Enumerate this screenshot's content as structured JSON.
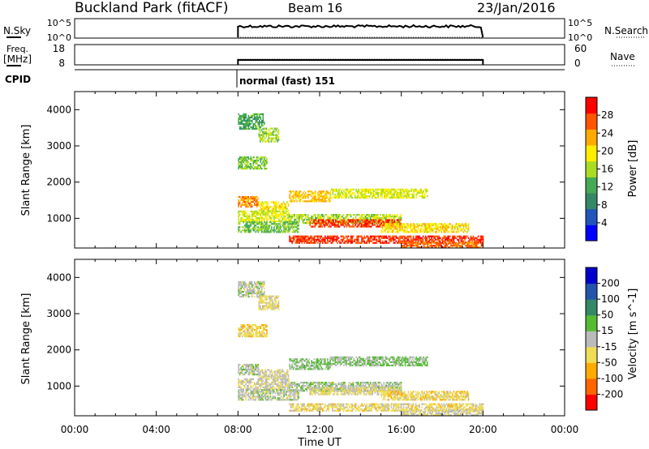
{
  "header": {
    "site": "Buckland Park (fitACF)",
    "beam": "Beam 16",
    "date": "23/Jan/2016"
  },
  "top_panels": {
    "noise": {
      "left_label": "N.Sky",
      "right_label": "N.Search",
      "left_ticks": [
        "10^5",
        "10^0"
      ],
      "right_ticks": [
        "10^5",
        "10^0"
      ]
    },
    "freq": {
      "left_label_1": "Freq.",
      "left_label_2": "[MHz]",
      "left_ticks": [
        "18",
        "8"
      ],
      "right_ticks": [
        "60",
        "0"
      ],
      "right_label": "Nave"
    },
    "cpid": {
      "label": "CPID",
      "mode_text": "normal (fast) 151"
    }
  },
  "x_axis": {
    "label": "Time UT",
    "ticks": [
      "00:00",
      "04:00",
      "08:00",
      "12:00",
      "16:00",
      "20:00",
      "00:00"
    ]
  },
  "colors": {
    "power_scale": [
      "#0000ff",
      "#2255bb",
      "#338866",
      "#44aa55",
      "#aadd22",
      "#ffee00",
      "#ffaa00",
      "#ff5500",
      "#ff0000"
    ],
    "velocity_scale": [
      "#ff0000",
      "#ff6600",
      "#ffaa00",
      "#eedd55",
      "#bbbbbb",
      "#55bb33",
      "#338866",
      "#2255aa",
      "#0000cc"
    ]
  },
  "chart_data": [
    {
      "type": "heatmap",
      "title": "",
      "quantity": "Power",
      "ylabel": "Slant Range [km]",
      "xlabel": "",
      "xlim_hours": [
        0,
        24
      ],
      "ylim_km": [
        180,
        4500
      ],
      "yticks": [
        "1000",
        "2000",
        "3000",
        "4000"
      ],
      "colorbar": {
        "label": "Power [dB]",
        "ticks": [
          "4",
          "8",
          "12",
          "16",
          "20",
          "24",
          "28"
        ],
        "range": [
          0,
          32
        ]
      },
      "echo_regions": [
        {
          "t0": 8.0,
          "t1": 9.3,
          "r0": 3450,
          "r1": 3900,
          "value": 12
        },
        {
          "t0": 9.0,
          "t1": 10.0,
          "r0": 3100,
          "r1": 3500,
          "value": 16
        },
        {
          "t0": 8.0,
          "t1": 9.4,
          "r0": 2350,
          "r1": 2700,
          "value": 14
        },
        {
          "t0": 8.0,
          "t1": 9.0,
          "r0": 1300,
          "r1": 1600,
          "value": 24
        },
        {
          "t0": 9.0,
          "t1": 10.5,
          "r0": 1200,
          "r1": 1450,
          "value": 20
        },
        {
          "t0": 10.5,
          "t1": 12.5,
          "r0": 1450,
          "r1": 1750,
          "value": 22
        },
        {
          "t0": 12.5,
          "t1": 17.3,
          "r0": 1550,
          "r1": 1800,
          "value": 18
        },
        {
          "t0": 8.0,
          "t1": 10.5,
          "r0": 900,
          "r1": 1200,
          "value": 18
        },
        {
          "t0": 10.5,
          "t1": 16.0,
          "r0": 850,
          "r1": 1100,
          "value": 16
        },
        {
          "t0": 8.0,
          "t1": 11.0,
          "r0": 600,
          "r1": 900,
          "value": 14
        },
        {
          "t0": 11.5,
          "t1": 16.0,
          "r0": 750,
          "r1": 950,
          "value": 28
        },
        {
          "t0": 15.0,
          "t1": 19.3,
          "r0": 600,
          "r1": 850,
          "value": 20
        },
        {
          "t0": 10.5,
          "t1": 20.0,
          "r0": 300,
          "r1": 500,
          "value": 28
        },
        {
          "t0": 16.0,
          "t1": 20.0,
          "r0": 180,
          "r1": 350,
          "value": 26
        }
      ]
    },
    {
      "type": "heatmap",
      "title": "",
      "quantity": "Velocity",
      "ylabel": "Slant Range [km]",
      "xlabel": "Time UT",
      "xlim_hours": [
        0,
        24
      ],
      "ylim_km": [
        180,
        4500
      ],
      "yticks": [
        "1000",
        "2000",
        "3000",
        "4000"
      ],
      "colorbar": {
        "label": "Velocity [m s^-1]",
        "ticks": [
          "200",
          "100",
          "50",
          "15",
          "-15",
          "-50",
          "-100",
          "-200"
        ],
        "range": [
          -250,
          250
        ]
      },
      "echo_regions": [
        {
          "t0": 8.0,
          "t1": 9.3,
          "r0": 3450,
          "r1": 3900,
          "value": 0
        },
        {
          "t0": 9.0,
          "t1": 10.0,
          "r0": 3100,
          "r1": 3500,
          "value": -40
        },
        {
          "t0": 8.0,
          "t1": 9.4,
          "r0": 2350,
          "r1": 2700,
          "value": -60
        },
        {
          "t0": 8.0,
          "t1": 9.0,
          "r0": 1300,
          "r1": 1600,
          "value": 0
        },
        {
          "t0": 9.0,
          "t1": 10.5,
          "r0": 1200,
          "r1": 1450,
          "value": -30
        },
        {
          "t0": 10.5,
          "t1": 12.5,
          "r0": 1450,
          "r1": 1750,
          "value": 40
        },
        {
          "t0": 12.5,
          "t1": 17.3,
          "r0": 1550,
          "r1": 1800,
          "value": 30
        },
        {
          "t0": 8.0,
          "t1": 10.5,
          "r0": 900,
          "r1": 1200,
          "value": -20
        },
        {
          "t0": 10.5,
          "t1": 16.0,
          "r0": 850,
          "r1": 1100,
          "value": 10
        },
        {
          "t0": 8.0,
          "t1": 11.0,
          "r0": 600,
          "r1": 900,
          "value": 0
        },
        {
          "t0": 11.5,
          "t1": 16.0,
          "r0": 750,
          "r1": 950,
          "value": -40
        },
        {
          "t0": 15.0,
          "t1": 19.3,
          "r0": 600,
          "r1": 850,
          "value": -60
        },
        {
          "t0": 10.5,
          "t1": 20.0,
          "r0": 300,
          "r1": 500,
          "value": -50
        },
        {
          "t0": 16.0,
          "t1": 20.0,
          "r0": 180,
          "r1": 350,
          "value": -20
        }
      ]
    }
  ]
}
